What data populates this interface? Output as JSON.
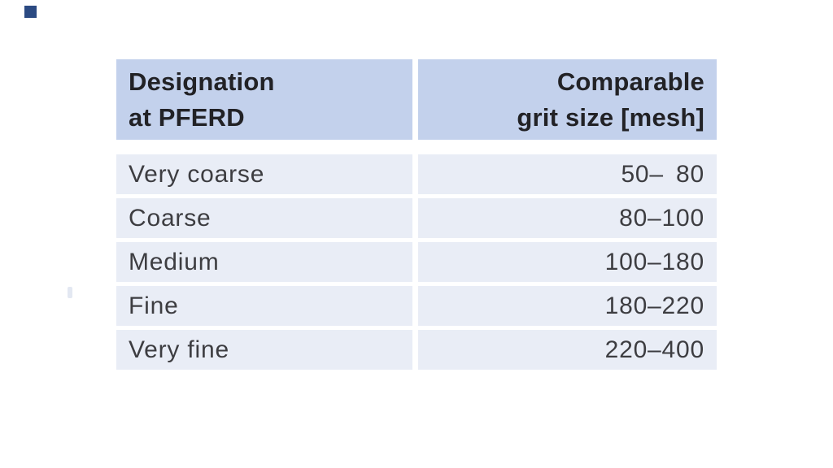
{
  "page": {
    "background_color": "#ffffff"
  },
  "artifacts": {
    "corner_marker_color": "#2b4a82",
    "scan_smudge_color": "#e3e8f2"
  },
  "table": {
    "colors": {
      "header_bg": "#c3d1ec",
      "row_bg": "#e9edf6",
      "header_text": "#222226",
      "row_text": "#3d3d41",
      "gutter": "#ffffff"
    },
    "header": {
      "col1": {
        "line1": "Designation",
        "line2": "at PFERD"
      },
      "col2": {
        "line1": "Comparable",
        "line2": "grit size [mesh]"
      }
    },
    "rows": [
      {
        "designation": "Very coarse",
        "grit": "50– 80"
      },
      {
        "designation": "Coarse",
        "grit": "80–100"
      },
      {
        "designation": "Medium",
        "grit": "100–180"
      },
      {
        "designation": "Fine",
        "grit": "180–220"
      },
      {
        "designation": "Very fine",
        "grit": "220–400"
      }
    ]
  }
}
